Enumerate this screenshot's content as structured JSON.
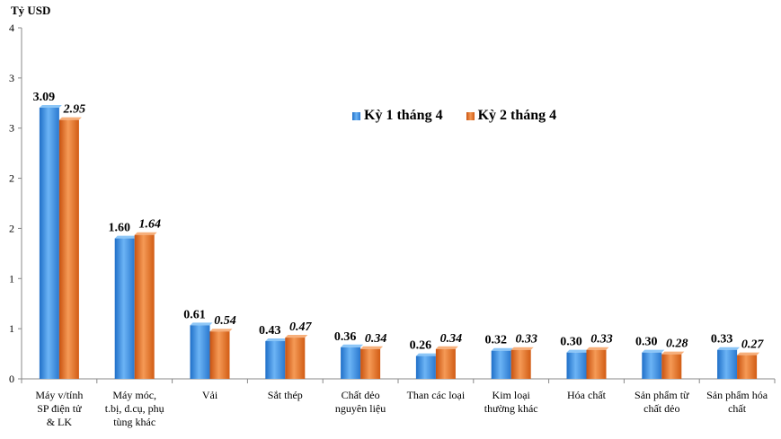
{
  "chart_data": {
    "type": "bar",
    "unit_label": "Tỷ USD",
    "categories": [
      "Máy v/tính SP điện tử & LK",
      "Máy móc, t.bị, d.cụ, phụ tùng khác",
      "Vải",
      "Sắt thép",
      "Chất dẻo nguyên liệu",
      "Than các loại",
      "Kim loại thường khác",
      "Hóa chất",
      "Sản phẩm từ chất dẻo",
      "Sản phẩm hóa chất"
    ],
    "category_lines": [
      [
        "Máy v/tính",
        "SP điện tử",
        "& LK"
      ],
      [
        "Máy móc,",
        "t.bị, d.cụ, phụ",
        "tùng khác"
      ],
      [
        "Vải"
      ],
      [
        "Sắt thép"
      ],
      [
        "Chất dẻo",
        "nguyên liệu"
      ],
      [
        "Than các loại"
      ],
      [
        "Kim loại",
        "thường khác"
      ],
      [
        "Hóa chất"
      ],
      [
        "Sản phẩm từ",
        "chất dẻo"
      ],
      [
        "Sản phẩm hóa",
        "chất"
      ]
    ],
    "series": [
      {
        "name": "Kỳ 1 tháng 4",
        "color": "#3d8fe0",
        "values": [
          3.09,
          1.6,
          0.61,
          0.43,
          0.36,
          0.26,
          0.32,
          0.3,
          0.3,
          0.33
        ],
        "labels": [
          "3.09",
          "1.60",
          "0.61",
          "0.43",
          "0.36",
          "0.26",
          "0.32",
          "0.30",
          "0.30",
          "0.33"
        ]
      },
      {
        "name": "Kỳ 2 tháng 4",
        "color": "#e86a1e",
        "values": [
          2.95,
          1.64,
          0.54,
          0.47,
          0.34,
          0.34,
          0.33,
          0.33,
          0.28,
          0.27
        ],
        "labels": [
          "2.95",
          "1.64",
          "0.54",
          "0.47",
          "0.34",
          "0.34",
          "0.33",
          "0.33",
          "0.28",
          "0.27"
        ]
      }
    ],
    "ylim": [
      0,
      4
    ],
    "yticks": [
      "0",
      "1",
      "1",
      "2",
      "2",
      "3",
      "3",
      "4"
    ],
    "grid": false,
    "legend_position": "top-right"
  }
}
